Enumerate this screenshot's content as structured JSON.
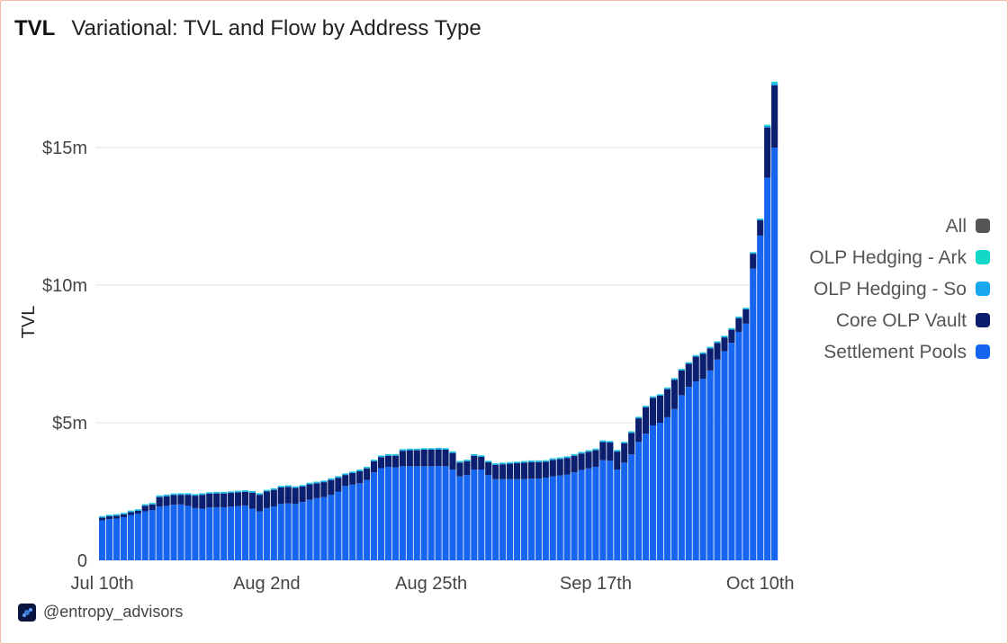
{
  "header": {
    "tag": "TVL",
    "title": "Variational: TVL and Flow by Address Type"
  },
  "footer": {
    "handle": "@entropy_advisors",
    "logo_icon": "entropy-logo-icon"
  },
  "colors": {
    "settlement": "#1565f0",
    "core": "#0b1f6e",
    "hedging_so": "#18a8f0",
    "hedging_arb": "#13d8c8",
    "all": "#555555",
    "grid": "#e3e3e3"
  },
  "chart_data": {
    "type": "bar",
    "stacked": true,
    "ylabel": "TVL",
    "ylim": [
      0,
      17500000
    ],
    "yticks": [
      {
        "value": 0,
        "label": "0"
      },
      {
        "value": 5000000,
        "label": "$5m"
      },
      {
        "value": 10000000,
        "label": "$10m"
      },
      {
        "value": 15000000,
        "label": "$15m"
      }
    ],
    "xtick_labels": [
      "Jul 10th",
      "Aug 2nd",
      "Aug 25th",
      "Sep 17th",
      "Oct 10th"
    ],
    "xtick_indices": [
      0,
      23,
      46,
      69,
      92
    ],
    "legend": [
      {
        "name": "All",
        "color": "#555555"
      },
      {
        "name": "OLP Hedging - Ark",
        "color": "#13d8c8"
      },
      {
        "name": "OLP Hedging - So",
        "color": "#18a8f0"
      },
      {
        "name": "Core OLP Vault",
        "color": "#0b1f6e"
      },
      {
        "name": "Settlement Pools",
        "color": "#1565f0"
      }
    ],
    "series": [
      {
        "name": "Settlement Pools",
        "values": [
          1.45,
          1.5,
          1.52,
          1.57,
          1.65,
          1.7,
          1.78,
          1.83,
          1.95,
          1.98,
          2.02,
          2.03,
          1.98,
          1.9,
          1.88,
          1.92,
          1.93,
          1.93,
          1.95,
          1.97,
          1.99,
          1.88,
          1.78,
          1.9,
          1.96,
          2.05,
          2.07,
          2.05,
          2.12,
          2.2,
          2.26,
          2.3,
          2.38,
          2.5,
          2.7,
          2.75,
          2.8,
          2.92,
          3.2,
          3.35,
          3.4,
          3.38,
          3.42,
          3.42,
          3.42,
          3.42,
          3.42,
          3.43,
          3.42,
          3.3,
          3.05,
          3.1,
          3.3,
          3.3,
          3.1,
          2.95,
          2.95,
          2.95,
          2.95,
          2.95,
          2.97,
          2.97,
          3.0,
          3.05,
          3.08,
          3.12,
          3.2,
          3.28,
          3.34,
          3.4,
          3.64,
          3.62,
          3.3,
          3.55,
          3.85,
          4.3,
          4.6,
          4.9,
          5.0,
          5.2,
          5.5,
          6.0,
          6.3,
          6.5,
          6.6,
          6.9,
          7.3,
          7.6,
          7.9,
          8.3,
          8.6,
          10.6,
          11.8,
          13.9,
          15.0
        ]
      },
      {
        "name": "Core OLP Vault",
        "values": [
          0.1,
          0.1,
          0.1,
          0.1,
          0.1,
          0.1,
          0.2,
          0.2,
          0.35,
          0.35,
          0.35,
          0.35,
          0.4,
          0.45,
          0.5,
          0.5,
          0.5,
          0.5,
          0.5,
          0.5,
          0.5,
          0.58,
          0.6,
          0.6,
          0.6,
          0.6,
          0.6,
          0.58,
          0.56,
          0.56,
          0.54,
          0.54,
          0.54,
          0.5,
          0.4,
          0.42,
          0.44,
          0.42,
          0.4,
          0.4,
          0.4,
          0.42,
          0.56,
          0.58,
          0.58,
          0.6,
          0.6,
          0.6,
          0.6,
          0.6,
          0.5,
          0.5,
          0.5,
          0.46,
          0.46,
          0.52,
          0.54,
          0.56,
          0.58,
          0.6,
          0.6,
          0.6,
          0.58,
          0.6,
          0.6,
          0.6,
          0.6,
          0.6,
          0.6,
          0.6,
          0.66,
          0.66,
          0.65,
          0.7,
          0.78,
          0.86,
          0.96,
          1.0,
          0.98,
          1.02,
          1.06,
          0.9,
          0.84,
          0.9,
          0.9,
          0.8,
          0.6,
          0.5,
          0.48,
          0.5,
          0.52,
          0.54,
          0.56,
          1.83,
          2.26
        ]
      },
      {
        "name": "OLP Hedging - So",
        "values": [
          0.04,
          0.04,
          0.04,
          0.04,
          0.04,
          0.04,
          0.04,
          0.04,
          0.04,
          0.04,
          0.04,
          0.04,
          0.04,
          0.04,
          0.04,
          0.04,
          0.04,
          0.04,
          0.04,
          0.04,
          0.04,
          0.04,
          0.04,
          0.04,
          0.04,
          0.04,
          0.04,
          0.04,
          0.04,
          0.04,
          0.04,
          0.04,
          0.04,
          0.04,
          0.04,
          0.04,
          0.04,
          0.04,
          0.04,
          0.04,
          0.04,
          0.04,
          0.04,
          0.04,
          0.04,
          0.04,
          0.04,
          0.04,
          0.04,
          0.04,
          0.04,
          0.04,
          0.04,
          0.04,
          0.04,
          0.04,
          0.04,
          0.04,
          0.04,
          0.04,
          0.04,
          0.04,
          0.04,
          0.04,
          0.04,
          0.04,
          0.04,
          0.04,
          0.04,
          0.04,
          0.04,
          0.04,
          0.04,
          0.04,
          0.04,
          0.04,
          0.04,
          0.04,
          0.04,
          0.04,
          0.04,
          0.04,
          0.04,
          0.04,
          0.04,
          0.04,
          0.04,
          0.04,
          0.04,
          0.04,
          0.04,
          0.04,
          0.04,
          0.06,
          0.08
        ]
      },
      {
        "name": "OLP Hedging - Ark",
        "values": [
          0.02,
          0.02,
          0.02,
          0.02,
          0.02,
          0.02,
          0.02,
          0.02,
          0.02,
          0.02,
          0.02,
          0.02,
          0.02,
          0.02,
          0.02,
          0.02,
          0.02,
          0.02,
          0.02,
          0.02,
          0.02,
          0.02,
          0.02,
          0.02,
          0.02,
          0.02,
          0.02,
          0.02,
          0.02,
          0.02,
          0.02,
          0.02,
          0.02,
          0.02,
          0.02,
          0.02,
          0.02,
          0.02,
          0.02,
          0.02,
          0.02,
          0.02,
          0.02,
          0.02,
          0.02,
          0.02,
          0.02,
          0.02,
          0.02,
          0.02,
          0.02,
          0.02,
          0.02,
          0.02,
          0.02,
          0.02,
          0.02,
          0.02,
          0.02,
          0.02,
          0.02,
          0.02,
          0.02,
          0.02,
          0.02,
          0.02,
          0.02,
          0.02,
          0.02,
          0.02,
          0.02,
          0.02,
          0.02,
          0.02,
          0.02,
          0.02,
          0.02,
          0.02,
          0.02,
          0.02,
          0.02,
          0.02,
          0.02,
          0.02,
          0.02,
          0.02,
          0.02,
          0.02,
          0.02,
          0.02,
          0.02,
          0.02,
          0.02,
          0.04,
          0.05
        ]
      }
    ],
    "units": "millions USD"
  }
}
